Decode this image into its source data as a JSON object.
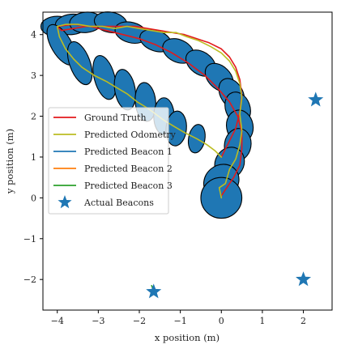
{
  "chart_data": {
    "type": "line",
    "xlabel": "x position (m)",
    "ylabel": "y position (m)",
    "xlim": [
      -4.35,
      2.7
    ],
    "ylim": [
      -2.75,
      4.55
    ],
    "xticks": [
      -4,
      -3,
      -2,
      -1,
      0,
      1,
      2
    ],
    "yticks": [
      -2,
      -1,
      0,
      1,
      2,
      3,
      4
    ],
    "xtick_labels": [
      "−4",
      "−3",
      "−2",
      "−1",
      "0",
      "1",
      "2"
    ],
    "ytick_labels": [
      "−2",
      "−1",
      "0",
      "1",
      "2",
      "3",
      "4"
    ],
    "grid": false,
    "legend_position": "center-left",
    "colors": {
      "ground_truth": "#e31a1c",
      "odometry": "#bcbd22",
      "beacon1": "#1f77b4",
      "beacon2": "#ff7f0e",
      "beacon3": "#2ca02c",
      "ellipse_fill": "#1f77b4",
      "ellipse_edge": "#000000",
      "star": "#1f77b4"
    },
    "series": [
      {
        "name": "Ground Truth",
        "color": "#e31a1c",
        "x": [
          0.0,
          0.15,
          0.35,
          0.45,
          0.5,
          0.45,
          0.35,
          0.2,
          0.0,
          -0.3,
          -0.6,
          -0.9,
          -1.2,
          -1.5,
          -1.8,
          -2.1,
          -2.4,
          -2.7,
          -3.0,
          -3.3,
          -3.6,
          -3.9,
          -4.0,
          -3.6,
          -3.2,
          -2.8,
          -2.4,
          -2.0,
          -1.6,
          -1.2,
          -0.8,
          -0.4,
          -0.1,
          0.2,
          0.4,
          0.5,
          0.5,
          0.45,
          0.3,
          0.1,
          0.0
        ],
        "y": [
          1.0,
          1.3,
          1.7,
          2.1,
          2.5,
          2.9,
          3.2,
          3.45,
          3.65,
          3.8,
          3.9,
          4.0,
          4.05,
          4.1,
          4.15,
          4.2,
          4.2,
          4.2,
          4.2,
          4.2,
          4.15,
          4.1,
          4.2,
          4.25,
          4.2,
          4.1,
          4.0,
          3.9,
          3.75,
          3.55,
          3.3,
          3.0,
          2.7,
          2.35,
          2.0,
          1.6,
          1.2,
          0.8,
          0.5,
          0.2,
          0.05
        ]
      },
      {
        "name": "Predicted Odometry",
        "color": "#bcbd22",
        "x": [
          0.0,
          -0.05,
          0.1,
          0.2,
          0.35,
          0.45,
          0.5,
          0.45,
          0.5,
          0.45,
          0.35,
          0.2,
          0.0,
          -0.25,
          -0.55,
          -0.85,
          -1.1,
          -1.4,
          -1.7,
          -2.0,
          -2.3,
          -2.6,
          -2.9,
          -3.2,
          -3.5,
          -3.8,
          -4.0,
          -3.95,
          -3.8,
          -3.6,
          -3.4,
          -3.1,
          -2.8,
          -2.55,
          -2.3,
          -2.05,
          -1.8,
          -1.6,
          -1.4,
          -1.15,
          -0.9,
          -0.6,
          -0.35,
          -0.15,
          0.0
        ],
        "y": [
          0.0,
          0.25,
          0.35,
          0.7,
          0.95,
          1.3,
          1.65,
          2.05,
          2.45,
          2.8,
          3.1,
          3.35,
          3.55,
          3.7,
          3.85,
          3.95,
          4.05,
          4.05,
          4.1,
          4.15,
          4.2,
          4.15,
          4.2,
          4.2,
          4.25,
          4.25,
          4.2,
          3.95,
          3.65,
          3.4,
          3.2,
          3.0,
          2.85,
          2.7,
          2.55,
          2.35,
          2.2,
          2.05,
          1.9,
          1.75,
          1.6,
          1.45,
          1.3,
          1.15,
          1.0
        ]
      },
      {
        "name": "Predicted Beacon 1",
        "color": "#1f77b4",
        "x": [
          2.25,
          2.35
        ],
        "y": [
          2.45,
          2.35
        ]
      },
      {
        "name": "Predicted Beacon 2",
        "color": "#ff7f0e",
        "x": [
          1.85,
          2.05
        ],
        "y": [
          -1.95,
          -2.05
        ]
      },
      {
        "name": "Predicted Beacon 3",
        "color": "#2ca02c",
        "x": [
          -1.7,
          -1.62
        ],
        "y": [
          -2.15,
          -2.35
        ]
      }
    ],
    "beacons": {
      "name": "Actual Beacons",
      "color": "#1f77b4",
      "x": [
        2.3,
        2.0,
        -1.65
      ],
      "y": [
        2.4,
        -2.0,
        -2.3
      ]
    },
    "covariance_ellipses": [
      {
        "x": -4.0,
        "y": 4.2,
        "w": 0.8,
        "h": 0.5,
        "angle": 0
      },
      {
        "x": -3.65,
        "y": 4.25,
        "w": 0.8,
        "h": 0.5,
        "angle": 5
      },
      {
        "x": -3.3,
        "y": 4.3,
        "w": 0.8,
        "h": 0.5,
        "angle": 5
      },
      {
        "x": -2.7,
        "y": 4.3,
        "w": 0.8,
        "h": 0.5,
        "angle": -10
      },
      {
        "x": -2.2,
        "y": 4.05,
        "w": 0.8,
        "h": 0.5,
        "angle": -15
      },
      {
        "x": -1.6,
        "y": 3.85,
        "w": 0.8,
        "h": 0.5,
        "angle": -20
      },
      {
        "x": -1.05,
        "y": 3.6,
        "w": 0.8,
        "h": 0.55,
        "angle": -25
      },
      {
        "x": -0.5,
        "y": 3.3,
        "w": 0.8,
        "h": 0.55,
        "angle": -35
      },
      {
        "x": -0.05,
        "y": 2.95,
        "w": 0.8,
        "h": 0.55,
        "angle": -45
      },
      {
        "x": 0.25,
        "y": 2.55,
        "w": 0.8,
        "h": 0.55,
        "angle": -60
      },
      {
        "x": 0.4,
        "y": 2.2,
        "w": 0.8,
        "h": 0.6,
        "angle": -70
      },
      {
        "x": 0.45,
        "y": 1.75,
        "w": 0.8,
        "h": 0.65,
        "angle": -80
      },
      {
        "x": 0.4,
        "y": 1.3,
        "w": 0.8,
        "h": 0.65,
        "angle": 80
      },
      {
        "x": 0.2,
        "y": 0.85,
        "w": 0.8,
        "h": 0.7,
        "angle": 60
      },
      {
        "x": 0.0,
        "y": 0.4,
        "w": 0.9,
        "h": 0.8,
        "angle": 40
      },
      {
        "x": 0.0,
        "y": 0.0,
        "w": 1.0,
        "h": 1.0,
        "angle": 0
      },
      {
        "x": -3.9,
        "y": 3.75,
        "w": 1.1,
        "h": 0.5,
        "angle": -60
      },
      {
        "x": -3.45,
        "y": 3.3,
        "w": 1.1,
        "h": 0.5,
        "angle": -70
      },
      {
        "x": -2.85,
        "y": 2.95,
        "w": 1.1,
        "h": 0.5,
        "angle": -75
      },
      {
        "x": -2.35,
        "y": 2.65,
        "w": 1.0,
        "h": 0.5,
        "angle": -80
      },
      {
        "x": -1.85,
        "y": 2.35,
        "w": 0.95,
        "h": 0.5,
        "angle": -85
      },
      {
        "x": -1.4,
        "y": 2.0,
        "w": 0.9,
        "h": 0.5,
        "angle": 90
      },
      {
        "x": -1.1,
        "y": 1.7,
        "w": 0.85,
        "h": 0.5,
        "angle": 85
      },
      {
        "x": -0.6,
        "y": 1.45,
        "w": 0.7,
        "h": 0.4,
        "angle": 80
      }
    ],
    "legend": [
      {
        "label": "Ground Truth",
        "kind": "line",
        "color": "#e31a1c"
      },
      {
        "label": "Predicted Odometry",
        "kind": "line",
        "color": "#bcbd22"
      },
      {
        "label": "Predicted Beacon 1",
        "kind": "line",
        "color": "#1f77b4"
      },
      {
        "label": "Predicted Beacon 2",
        "kind": "line",
        "color": "#ff7f0e"
      },
      {
        "label": "Predicted Beacon 3",
        "kind": "line",
        "color": "#2ca02c"
      },
      {
        "label": "Actual Beacons",
        "kind": "star",
        "color": "#1f77b4"
      }
    ]
  }
}
